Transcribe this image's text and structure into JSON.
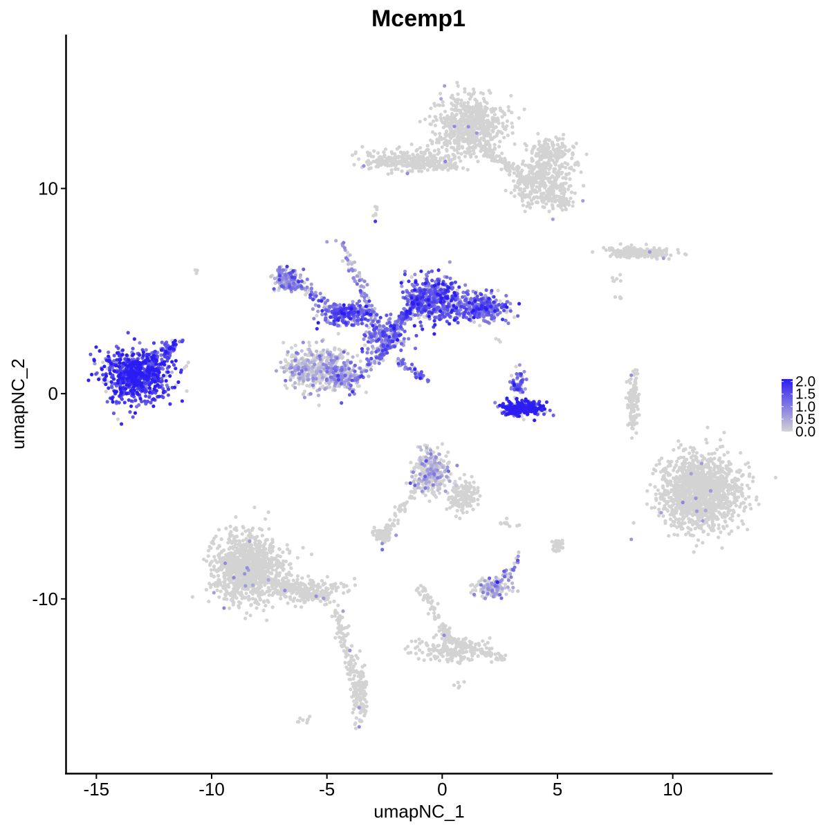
{
  "chart_data": {
    "type": "scatter",
    "title": "Mcemp1",
    "xlabel": "umapNC_1",
    "ylabel": "umapNC_2",
    "xlim": [
      -16.3,
      14.3
    ],
    "ylim": [
      -18.5,
      17.5
    ],
    "x_ticks": [
      -15,
      -10,
      -5,
      0,
      5,
      10
    ],
    "x_tick_labels": [
      "-15",
      "-10",
      "-5",
      "0",
      "5",
      "10"
    ],
    "y_ticks": [
      -10,
      0,
      10
    ],
    "y_tick_labels": [
      "-10",
      "0",
      "10"
    ],
    "grid": false,
    "legend_position": "right",
    "color_scale": {
      "low_color": "#d3d3d3",
      "high_color": "#2b1df2",
      "min": 0.0,
      "max": 2.1,
      "breaks": [
        0.0,
        0.5,
        1.0,
        1.5,
        2.0
      ],
      "break_labels": [
        "0.0",
        "0.5",
        "1.0",
        "1.5",
        "2.0"
      ]
    },
    "clusters": [
      {
        "cx": -13.3,
        "cy": 0.9,
        "sx": 1.35,
        "sy": 1.15,
        "n": 750,
        "expr": 1.75
      },
      {
        "cx": -11.9,
        "cy": 2.1,
        "sx": 0.35,
        "sy": 0.45,
        "n": 60,
        "expr": 1.3
      },
      {
        "cx": 3.5,
        "cy": -0.7,
        "sx": 0.85,
        "sy": 0.3,
        "n": 280,
        "expr": 1.9
      },
      {
        "cx": 3.3,
        "cy": 0.5,
        "sx": 0.35,
        "sy": 0.6,
        "n": 60,
        "expr": 1.2
      },
      {
        "cx": -0.4,
        "cy": 4.6,
        "sx": 1.1,
        "sy": 1.0,
        "n": 500,
        "expr": 1.3
      },
      {
        "cx": 1.7,
        "cy": 4.2,
        "sx": 1.0,
        "sy": 0.55,
        "n": 300,
        "expr": 1.2
      },
      {
        "cx": -4.2,
        "cy": 3.9,
        "sx": 1.0,
        "sy": 0.5,
        "n": 220,
        "expr": 1.3
      },
      {
        "cx": -6.6,
        "cy": 5.5,
        "sx": 0.6,
        "sy": 0.55,
        "n": 140,
        "expr": 0.7
      },
      {
        "cx": -2.5,
        "cy": 2.8,
        "sx": 0.8,
        "sy": 0.8,
        "n": 200,
        "expr": 1.0
      },
      {
        "cx": -5.4,
        "cy": 1.2,
        "sx": 1.35,
        "sy": 0.95,
        "n": 460,
        "expr": 0.1
      },
      {
        "cx": -4.4,
        "cy": 0.9,
        "sx": 0.6,
        "sy": 0.8,
        "n": 120,
        "expr": 0.7
      },
      {
        "cx": 1.2,
        "cy": 13.0,
        "sx": 1.3,
        "sy": 1.3,
        "n": 650,
        "expr": 0.0
      },
      {
        "cx": -1.5,
        "cy": 11.4,
        "sx": 1.7,
        "sy": 0.5,
        "n": 250,
        "expr": 0.0
      },
      {
        "cx": 4.4,
        "cy": 10.3,
        "sx": 1.1,
        "sy": 1.1,
        "n": 350,
        "expr": 0.0
      },
      {
        "cx": 4.7,
        "cy": 11.8,
        "sx": 1.0,
        "sy": 0.6,
        "n": 150,
        "expr": 0.0
      },
      {
        "cx": 8.6,
        "cy": 6.9,
        "sx": 1.4,
        "sy": 0.25,
        "n": 150,
        "expr": 0.0
      },
      {
        "cx": -8.4,
        "cy": -8.5,
        "sx": 1.3,
        "sy": 1.5,
        "n": 1000,
        "expr": 0.0
      },
      {
        "cx": -6.0,
        "cy": -9.6,
        "sx": 1.6,
        "sy": 0.5,
        "n": 200,
        "expr": 0.0
      },
      {
        "cx": -3.6,
        "cy": -14.5,
        "sx": 0.3,
        "sy": 1.3,
        "n": 120,
        "expr": 0.0
      },
      {
        "cx": 11.2,
        "cy": -4.8,
        "sx": 1.55,
        "sy": 1.6,
        "n": 1400,
        "expr": 0.0
      },
      {
        "cx": 8.3,
        "cy": -0.3,
        "sx": 0.25,
        "sy": 1.0,
        "n": 70,
        "expr": 0.0
      },
      {
        "cx": -0.5,
        "cy": -3.8,
        "sx": 0.7,
        "sy": 0.9,
        "n": 300,
        "expr": 0.05
      },
      {
        "cx": 0.9,
        "cy": -5.0,
        "sx": 0.6,
        "sy": 0.7,
        "n": 150,
        "expr": 0.0
      },
      {
        "cx": -2.6,
        "cy": -6.9,
        "sx": 0.3,
        "sy": 0.3,
        "n": 70,
        "expr": 0.0
      },
      {
        "cx": 2.2,
        "cy": -9.5,
        "sx": 0.7,
        "sy": 0.4,
        "n": 140,
        "expr": 0.2
      },
      {
        "cx": 0.3,
        "cy": -12.5,
        "sx": 1.6,
        "sy": 0.5,
        "n": 160,
        "expr": 0.0
      },
      {
        "cx": 5.0,
        "cy": -7.4,
        "sx": 0.2,
        "sy": 0.25,
        "n": 35,
        "expr": 0.0
      }
    ],
    "bridges": [
      {
        "x1": -13.8,
        "y1": 1.0,
        "x2": -11.3,
        "y2": 2.6,
        "n": 50,
        "expr": 1.5
      },
      {
        "x1": -7.2,
        "y1": 6.0,
        "x2": -4.2,
        "y2": 3.8,
        "n": 90,
        "expr": 0.9
      },
      {
        "x1": -4.4,
        "y1": 7.4,
        "x2": -2.6,
        "y2": 3.0,
        "n": 80,
        "expr": 0.6
      },
      {
        "x1": -2.2,
        "y1": 3.0,
        "x2": -1.0,
        "y2": 4.6,
        "n": 110,
        "expr": 1.2
      },
      {
        "x1": -3.8,
        "y1": 0.7,
        "x2": -1.9,
        "y2": 2.8,
        "n": 100,
        "expr": 1.0
      },
      {
        "x1": -2.0,
        "y1": 1.6,
        "x2": -0.6,
        "y2": 0.6,
        "n": 45,
        "expr": 1.1
      },
      {
        "x1": -2.8,
        "y1": 11.3,
        "x2": 0.8,
        "y2": 11.1,
        "n": 90,
        "expr": 0.0
      },
      {
        "x1": 1.8,
        "y1": 12.0,
        "x2": 3.8,
        "y2": 10.2,
        "n": 110,
        "expr": 0.0
      },
      {
        "x1": 4.5,
        "y1": 9.5,
        "x2": 5.6,
        "y2": 9.2,
        "n": 50,
        "expr": 0.0
      },
      {
        "x1": -9.6,
        "y1": -8.2,
        "x2": -4.8,
        "y2": -10.2,
        "n": 160,
        "expr": 0.0
      },
      {
        "x1": -4.6,
        "y1": -10.5,
        "x2": -3.6,
        "y2": -14.8,
        "n": 90,
        "expr": 0.0
      },
      {
        "x1": -1.1,
        "y1": -4.6,
        "x2": -2.6,
        "y2": -6.9,
        "n": 60,
        "expr": 0.0
      },
      {
        "x1": -0.9,
        "y1": -9.5,
        "x2": 0.3,
        "y2": -12.0,
        "n": 70,
        "expr": 0.0
      },
      {
        "x1": 0.3,
        "y1": -12.0,
        "x2": 2.7,
        "y2": -12.9,
        "n": 70,
        "expr": 0.0
      },
      {
        "x1": 2.4,
        "y1": -9.4,
        "x2": 3.3,
        "y2": -8.0,
        "n": 30,
        "expr": 0.8
      },
      {
        "x1": 8.3,
        "y1": -2.0,
        "x2": 8.3,
        "y2": 1.2,
        "n": 40,
        "expr": 0.0
      },
      {
        "x1": 7.2,
        "y1": 6.9,
        "x2": 9.8,
        "y2": 6.7,
        "n": 60,
        "expr": 0.0
      },
      {
        "x1": -11.3,
        "y1": 1.3,
        "x2": -11.0,
        "y2": 1.4,
        "n": 4,
        "expr": 0.0
      },
      {
        "x1": -10.6,
        "y1": 6.1,
        "x2": -10.5,
        "y2": 6.0,
        "n": 3,
        "expr": 0.0
      },
      {
        "x1": -2.9,
        "y1": 9.3,
        "x2": -2.8,
        "y2": 8.8,
        "n": 6,
        "expr": 0.0
      },
      {
        "x1": -6.2,
        "y1": -16.0,
        "x2": -5.8,
        "y2": -15.8,
        "n": 8,
        "expr": 0.0
      },
      {
        "x1": 2.4,
        "y1": -6.4,
        "x2": 3.2,
        "y2": -6.3,
        "n": 10,
        "expr": 0.0
      },
      {
        "x1": 7.5,
        "y1": 5.5,
        "x2": 7.8,
        "y2": 5.8,
        "n": 6,
        "expr": 0.0
      },
      {
        "x1": 7.6,
        "y1": 4.8,
        "x2": 7.8,
        "y2": 4.6,
        "n": 4,
        "expr": 0.0
      },
      {
        "x1": -4.0,
        "y1": -11.4,
        "x2": -3.9,
        "y2": -11.6,
        "n": 3,
        "expr": 0.0
      },
      {
        "x1": 2.4,
        "y1": 2.8,
        "x2": 2.5,
        "y2": 2.6,
        "n": 3,
        "expr": 0.0
      },
      {
        "x1": 0.6,
        "y1": -14.1,
        "x2": 0.8,
        "y2": -14.2,
        "n": 5,
        "expr": 0.0
      },
      {
        "x1": -3.9,
        "y1": -16.0,
        "x2": -3.8,
        "y2": -16.0,
        "n": 2,
        "expr": 0.0
      }
    ],
    "highlights": [
      {
        "x": -2.9,
        "y": 8.4,
        "expr": 1.8
      },
      {
        "x": -14.9,
        "y": 0.7,
        "expr": 2.1
      },
      {
        "x": 4.0,
        "y": -1.3,
        "expr": 2.1
      },
      {
        "x": 1.5,
        "y": 12.7,
        "expr": 0.7
      },
      {
        "x": 0.1,
        "y": 15.0,
        "expr": 0.6
      },
      {
        "x": 10.8,
        "y": -3.9,
        "expr": 0.6
      },
      {
        "x": 9.5,
        "y": -5.8,
        "expr": 0.6
      },
      {
        "x": 11.3,
        "y": -6.2,
        "expr": 0.6
      },
      {
        "x": 8.2,
        "y": -7.1,
        "expr": 0.7
      },
      {
        "x": -8.4,
        "y": -8.6,
        "expr": 0.6
      },
      {
        "x": -9.9,
        "y": -9.7,
        "expr": 0.6
      },
      {
        "x": -0.2,
        "y": -4.1,
        "expr": 1.0
      },
      {
        "x": -2.6,
        "y": -7.6,
        "expr": 1.2
      },
      {
        "x": -2.0,
        "y": -6.9,
        "expr": 0.7
      },
      {
        "x": 3.1,
        "y": -8.6,
        "expr": 1.0
      },
      {
        "x": 2.5,
        "y": -9.8,
        "expr": 1.2
      },
      {
        "x": 4.8,
        "y": 8.5,
        "expr": 0.6
      },
      {
        "x": 6.1,
        "y": 9.4,
        "expr": 0.6
      },
      {
        "x": -5.0,
        "y": 7.4,
        "expr": 0.6
      },
      {
        "x": 8.2,
        "y": 0.9,
        "expr": 0.8
      },
      {
        "x": 9.6,
        "y": 6.6,
        "expr": 0.6
      },
      {
        "x": -3.4,
        "y": 11.1,
        "expr": 0.8
      },
      {
        "x": -4.3,
        "y": -10.6,
        "expr": 0.6
      },
      {
        "x": -3.6,
        "y": -15.3,
        "expr": 0.7
      }
    ]
  }
}
